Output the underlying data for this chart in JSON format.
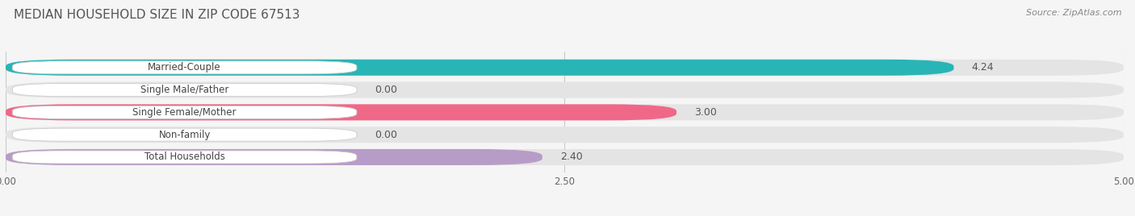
{
  "title": "MEDIAN HOUSEHOLD SIZE IN ZIP CODE 67513",
  "source": "Source: ZipAtlas.com",
  "categories": [
    "Married-Couple",
    "Single Male/Father",
    "Single Female/Mother",
    "Non-family",
    "Total Households"
  ],
  "values": [
    4.24,
    0.0,
    3.0,
    0.0,
    2.4
  ],
  "bar_colors": [
    "#29b5b5",
    "#a0b8e8",
    "#f06888",
    "#f5c8a0",
    "#b89cc8"
  ],
  "label_bg_color": "#ffffff",
  "bg_color": "#f5f5f5",
  "bar_bg_color": "#e4e4e4",
  "xlim_data": [
    0,
    5.0
  ],
  "xticks": [
    0.0,
    2.5,
    5.0
  ],
  "xtick_labels": [
    "0.00",
    "2.50",
    "5.00"
  ],
  "title_fontsize": 11,
  "bar_label_fontsize": 9,
  "category_fontsize": 8.5,
  "source_fontsize": 8
}
